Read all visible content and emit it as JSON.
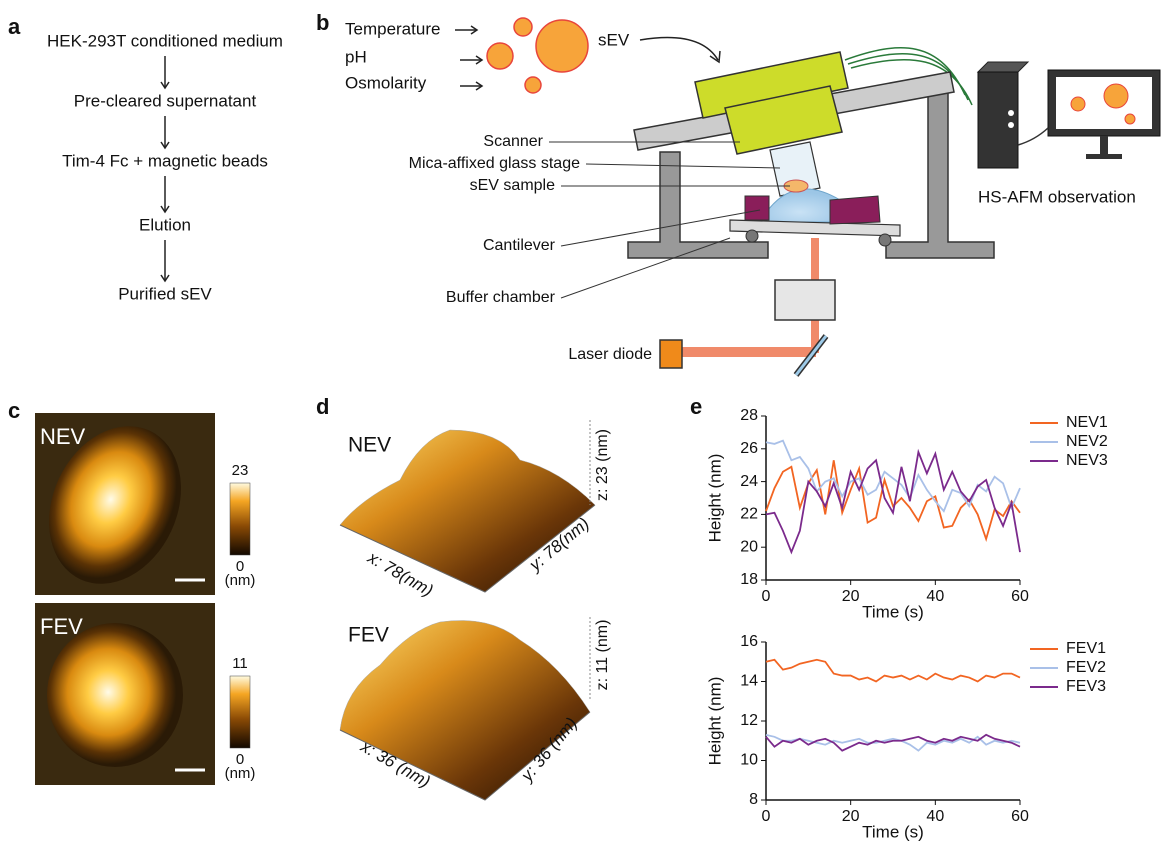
{
  "panel_a": {
    "label": "a",
    "steps": [
      "HEK-293T conditioned medium",
      "Pre-cleared supernatant",
      "Tim-4 Fc + magnetic beads",
      "Elution",
      "Purified sEV"
    ]
  },
  "panel_b": {
    "label": "b",
    "conditions": [
      "Temperature",
      "pH",
      "Osmolarity"
    ],
    "sev": "sEV",
    "parts": [
      "Scanner",
      "Mica-affixed glass stage",
      "sEV sample",
      "Cantilever",
      "Buffer chamber"
    ],
    "laser": "Laser diode",
    "observation": "HS-AFM observation"
  },
  "panel_c": {
    "label": "c",
    "images": [
      {
        "name": "NEV",
        "max": 23,
        "min": 0,
        "unit": "(nm)"
      },
      {
        "name": "FEV",
        "max": 11,
        "min": 0,
        "unit": "(nm)"
      }
    ]
  },
  "panel_d": {
    "label": "d",
    "images": [
      {
        "name": "NEV",
        "x": "x: 78(nm)",
        "y": "y: 78(nm)",
        "z": "z: 23 (nm)"
      },
      {
        "name": "FEV",
        "x": "x: 36 (nm)",
        "y": "y: 36 (nm)",
        "z": "z: 11 (nm)"
      }
    ]
  },
  "panel_e": {
    "label": "e",
    "charts": [
      {
        "type": "line",
        "xlabel": "Time (s)",
        "ylabel": "Height (nm)",
        "xlim": [
          0,
          60
        ],
        "xticks": [
          0,
          20,
          40,
          60
        ],
        "ylim": [
          18,
          28
        ],
        "yticks": [
          18,
          20,
          22,
          24,
          26,
          28
        ],
        "x": [
          0,
          2,
          4,
          6,
          8,
          10,
          12,
          14,
          16,
          18,
          20,
          22,
          24,
          26,
          28,
          30,
          32,
          34,
          36,
          38,
          40,
          42,
          44,
          46,
          48,
          50,
          52,
          54,
          56,
          58,
          60
        ],
        "series": [
          {
            "name": "NEV1",
            "color": "#f26522",
            "values": [
              22.2,
              23.6,
              24.6,
              24.9,
              22.4,
              23.9,
              24.7,
              22.0,
              25.3,
              22.1,
              23.5,
              24.8,
              21.5,
              21.8,
              24.1,
              22.5,
              23.0,
              22.4,
              21.6,
              22.8,
              23.1,
              21.2,
              21.3,
              22.4,
              22.9,
              22.0,
              20.5,
              22.3,
              21.9,
              22.8,
              22.1
            ]
          },
          {
            "name": "NEV2",
            "color": "#a9c0e8",
            "values": [
              26.4,
              26.3,
              26.5,
              25.3,
              25.5,
              24.8,
              23.4,
              24.0,
              24.2,
              23.1,
              24.0,
              24.2,
              23.2,
              23.5,
              24.6,
              24.2,
              23.8,
              23.0,
              24.4,
              23.5,
              22.8,
              22.2,
              23.5,
              23.3,
              22.5,
              23.8,
              23.4,
              24.3,
              23.9,
              22.4,
              23.6
            ]
          },
          {
            "name": "NEV3",
            "color": "#7b2a8c",
            "values": [
              22.0,
              22.1,
              21.0,
              19.7,
              21.0,
              24.0,
              23.4,
              22.5,
              23.9,
              22.4,
              24.6,
              23.5,
              24.8,
              25.3,
              23.0,
              22.1,
              24.9,
              22.8,
              25.8,
              24.5,
              25.7,
              23.5,
              24.6,
              23.4,
              22.8,
              23.7,
              24.1,
              22.4,
              21.3,
              22.7,
              19.7
            ]
          }
        ]
      },
      {
        "type": "line",
        "xlabel": "Time (s)",
        "ylabel": "Height (nm)",
        "xlim": [
          0,
          60
        ],
        "xticks": [
          0,
          20,
          40,
          60
        ],
        "ylim": [
          8,
          16
        ],
        "yticks": [
          8,
          10,
          12,
          14,
          16
        ],
        "x": [
          0,
          2,
          4,
          6,
          8,
          10,
          12,
          14,
          16,
          18,
          20,
          22,
          24,
          26,
          28,
          30,
          32,
          34,
          36,
          38,
          40,
          42,
          44,
          46,
          48,
          50,
          52,
          54,
          56,
          58,
          60
        ],
        "series": [
          {
            "name": "FEV1",
            "color": "#f26522",
            "values": [
              15.0,
              15.1,
              14.6,
              14.7,
              14.9,
              15.0,
              15.1,
              15.0,
              14.4,
              14.3,
              14.3,
              14.1,
              14.2,
              14.0,
              14.3,
              14.2,
              14.3,
              14.1,
              14.3,
              14.1,
              14.4,
              14.2,
              14.1,
              14.3,
              14.2,
              14.0,
              14.3,
              14.2,
              14.4,
              14.4,
              14.2
            ]
          },
          {
            "name": "FEV2",
            "color": "#a9c0e8",
            "values": [
              11.3,
              11.2,
              11.0,
              11.0,
              11.1,
              11.0,
              10.9,
              10.8,
              11.0,
              10.9,
              11.0,
              11.1,
              10.9,
              10.9,
              11.0,
              11.1,
              11.0,
              10.8,
              10.5,
              10.9,
              10.8,
              11.0,
              10.9,
              11.1,
              10.9,
              11.2,
              10.8,
              11.0,
              10.9,
              11.0,
              10.9
            ]
          },
          {
            "name": "FEV3",
            "color": "#7b2a8c",
            "values": [
              11.2,
              10.7,
              11.0,
              10.9,
              11.1,
              10.8,
              11.0,
              11.1,
              10.9,
              10.5,
              10.7,
              10.9,
              10.8,
              11.0,
              10.9,
              11.0,
              11.0,
              11.1,
              11.2,
              11.0,
              10.9,
              11.1,
              11.0,
              11.2,
              11.1,
              11.0,
              11.3,
              11.1,
              11.0,
              10.9,
              10.7
            ]
          }
        ]
      }
    ]
  }
}
